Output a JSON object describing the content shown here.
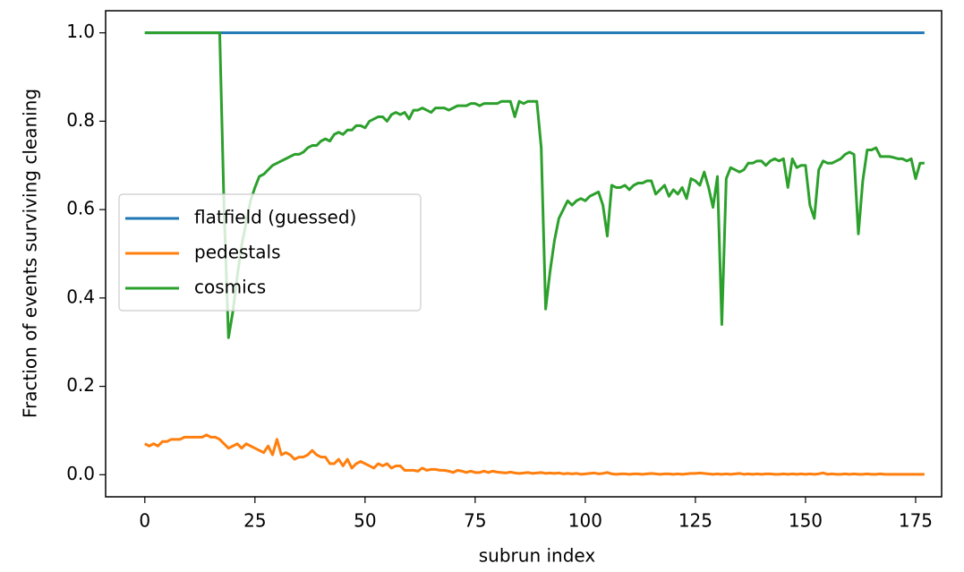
{
  "chart_data": {
    "type": "line",
    "xlabel": "subrun index",
    "ylabel": "Fraction of events surviving cleaning",
    "legend": "center left",
    "xlim": [
      -8.9,
      180.9
    ],
    "ylim": [
      -0.05,
      1.05
    ],
    "xticks": [
      0,
      25,
      50,
      75,
      100,
      125,
      150,
      175
    ],
    "yticks": [
      {
        "value": 0,
        "label": "0.0"
      },
      0.2,
      0.4,
      0.6,
      0.8,
      {
        "value": 1,
        "label": "1.0"
      }
    ],
    "x": [
      0,
      1,
      2,
      3,
      4,
      5,
      6,
      7,
      8,
      9,
      10,
      11,
      12,
      13,
      14,
      15,
      16,
      17,
      18,
      19,
      20,
      21,
      22,
      23,
      24,
      25,
      26,
      27,
      28,
      29,
      30,
      31,
      32,
      33,
      34,
      35,
      36,
      37,
      38,
      39,
      40,
      41,
      42,
      43,
      44,
      45,
      46,
      47,
      48,
      49,
      50,
      51,
      52,
      53,
      54,
      55,
      56,
      57,
      58,
      59,
      60,
      61,
      62,
      63,
      64,
      65,
      66,
      67,
      68,
      69,
      70,
      71,
      72,
      73,
      74,
      75,
      76,
      77,
      78,
      79,
      80,
      81,
      82,
      83,
      84,
      85,
      86,
      87,
      88,
      89,
      90,
      91,
      92,
      93,
      94,
      95,
      96,
      97,
      98,
      99,
      100,
      101,
      102,
      103,
      104,
      105,
      106,
      107,
      108,
      109,
      110,
      111,
      112,
      113,
      114,
      115,
      116,
      117,
      118,
      119,
      120,
      121,
      122,
      123,
      124,
      125,
      126,
      127,
      128,
      129,
      130,
      131,
      132,
      133,
      134,
      135,
      136,
      137,
      138,
      139,
      140,
      141,
      142,
      143,
      144,
      145,
      146,
      147,
      148,
      149,
      150,
      151,
      152,
      153,
      154,
      155,
      156,
      157,
      158,
      159,
      160,
      161,
      162,
      163,
      164,
      165,
      166,
      167,
      168,
      169,
      170,
      171,
      172,
      173,
      174,
      175,
      176,
      177
    ],
    "series": [
      {
        "name": "flatfield (guessed)",
        "color": "#1f77b4",
        "values": [
          1,
          1,
          1,
          1,
          1,
          1,
          1,
          1,
          1,
          1,
          1,
          1,
          1,
          1,
          1,
          1,
          1,
          1,
          1,
          1,
          1,
          1,
          1,
          1,
          1,
          1,
          1,
          1,
          1,
          1,
          1,
          1,
          1,
          1,
          1,
          1,
          1,
          1,
          1,
          1,
          1,
          1,
          1,
          1,
          1,
          1,
          1,
          1,
          1,
          1,
          1,
          1,
          1,
          1,
          1,
          1,
          1,
          1,
          1,
          1,
          1,
          1,
          1,
          1,
          1,
          1,
          1,
          1,
          1,
          1,
          1,
          1,
          1,
          1,
          1,
          1,
          1,
          1,
          1,
          1,
          1,
          1,
          1,
          1,
          1,
          1,
          1,
          1,
          1,
          1,
          1,
          1,
          1,
          1,
          1,
          1,
          1,
          1,
          1,
          1,
          1,
          1,
          1,
          1,
          1,
          1,
          1,
          1,
          1,
          1,
          1,
          1,
          1,
          1,
          1,
          1,
          1,
          1,
          1,
          1,
          1,
          1,
          1,
          1,
          1,
          1,
          1,
          1,
          1,
          1,
          1,
          1,
          1,
          1,
          1,
          1,
          1,
          1,
          1,
          1,
          1,
          1,
          1,
          1,
          1,
          1,
          1,
          1,
          1,
          1,
          1,
          1,
          1,
          1,
          1,
          1,
          1,
          1,
          1,
          1,
          1,
          1,
          1,
          1,
          1,
          1,
          1,
          1,
          1,
          1,
          1,
          1,
          1,
          1,
          1,
          1,
          1,
          1
        ]
      },
      {
        "name": "pedestals",
        "color": "#ff7f0e",
        "values": [
          0.07,
          0.065,
          0.07,
          0.065,
          0.075,
          0.075,
          0.08,
          0.08,
          0.08,
          0.085,
          0.085,
          0.085,
          0.085,
          0.085,
          0.09,
          0.085,
          0.085,
          0.08,
          0.07,
          0.06,
          0.065,
          0.07,
          0.06,
          0.07,
          0.065,
          0.06,
          0.055,
          0.05,
          0.065,
          0.045,
          0.08,
          0.045,
          0.05,
          0.045,
          0.035,
          0.04,
          0.04,
          0.045,
          0.055,
          0.045,
          0.04,
          0.04,
          0.025,
          0.025,
          0.035,
          0.02,
          0.035,
          0.015,
          0.025,
          0.03,
          0.025,
          0.02,
          0.015,
          0.025,
          0.02,
          0.025,
          0.015,
          0.02,
          0.02,
          0.01,
          0.01,
          0.01,
          0.008,
          0.015,
          0.01,
          0.012,
          0.012,
          0.01,
          0.01,
          0.008,
          0.005,
          0.01,
          0.008,
          0.005,
          0.008,
          0.005,
          0.005,
          0.008,
          0.005,
          0.008,
          0.006,
          0.005,
          0.004,
          0.006,
          0.004,
          0.003,
          0.004,
          0.005,
          0.003,
          0.004,
          0.005,
          0.003,
          0.004,
          0.003,
          0.004,
          0.002,
          0.003,
          0.002,
          0.003,
          0.001,
          0.002,
          0.003,
          0.004,
          0.002,
          0.003,
          0.005,
          0.002,
          0.001,
          0.002,
          0.002,
          0.001,
          0.002,
          0.002,
          0.001,
          0.002,
          0.003,
          0.002,
          0.001,
          0.002,
          0.002,
          0.001,
          0.002,
          0.001,
          0.002,
          0.003,
          0.003,
          0.004,
          0.003,
          0.002,
          0.001,
          0.002,
          0.001,
          0.002,
          0.001,
          0.002,
          0.003,
          0.001,
          0.002,
          0.001,
          0.002,
          0.001,
          0.002,
          0.002,
          0.001,
          0.001,
          0.002,
          0.001,
          0.002,
          0.001,
          0.002,
          0.001,
          0.002,
          0.001,
          0.002,
          0.004,
          0.001,
          0.002,
          0.001,
          0.001,
          0.002,
          0.001,
          0.002,
          0.001,
          0.001,
          0.002,
          0.001,
          0.001,
          0.002,
          0.001,
          0.001,
          0.001,
          0.001,
          0.001,
          0.001,
          0.001,
          0.001,
          0.001,
          0.001
        ]
      },
      {
        "name": "cosmics",
        "color": "#2ca02c",
        "values": [
          1,
          1,
          1,
          1,
          1,
          1,
          1,
          1,
          1,
          1,
          1,
          1,
          1,
          1,
          1,
          1,
          1,
          1,
          0.6,
          0.31,
          0.37,
          0.45,
          0.52,
          0.57,
          0.62,
          0.65,
          0.675,
          0.68,
          0.69,
          0.7,
          0.705,
          0.71,
          0.715,
          0.72,
          0.725,
          0.725,
          0.73,
          0.74,
          0.745,
          0.745,
          0.755,
          0.76,
          0.755,
          0.77,
          0.775,
          0.77,
          0.78,
          0.78,
          0.79,
          0.79,
          0.785,
          0.8,
          0.805,
          0.81,
          0.81,
          0.8,
          0.815,
          0.82,
          0.815,
          0.82,
          0.805,
          0.825,
          0.825,
          0.83,
          0.825,
          0.82,
          0.83,
          0.83,
          0.83,
          0.825,
          0.83,
          0.835,
          0.835,
          0.835,
          0.84,
          0.84,
          0.835,
          0.84,
          0.84,
          0.84,
          0.84,
          0.845,
          0.845,
          0.845,
          0.81,
          0.845,
          0.84,
          0.845,
          0.845,
          0.845,
          0.74,
          0.375,
          0.46,
          0.53,
          0.58,
          0.6,
          0.62,
          0.61,
          0.62,
          0.625,
          0.62,
          0.63,
          0.635,
          0.64,
          0.61,
          0.54,
          0.655,
          0.65,
          0.65,
          0.655,
          0.645,
          0.655,
          0.66,
          0.66,
          0.665,
          0.665,
          0.635,
          0.645,
          0.655,
          0.63,
          0.645,
          0.635,
          0.65,
          0.625,
          0.67,
          0.665,
          0.655,
          0.685,
          0.65,
          0.605,
          0.675,
          0.34,
          0.67,
          0.695,
          0.69,
          0.685,
          0.69,
          0.705,
          0.705,
          0.71,
          0.71,
          0.7,
          0.71,
          0.715,
          0.71,
          0.715,
          0.65,
          0.715,
          0.695,
          0.7,
          0.7,
          0.61,
          0.58,
          0.69,
          0.71,
          0.705,
          0.705,
          0.71,
          0.715,
          0.725,
          0.73,
          0.725,
          0.545,
          0.665,
          0.735,
          0.735,
          0.74,
          0.72,
          0.72,
          0.72,
          0.718,
          0.715,
          0.715,
          0.71,
          0.715,
          0.67,
          0.705,
          0.705
        ]
      }
    ]
  }
}
